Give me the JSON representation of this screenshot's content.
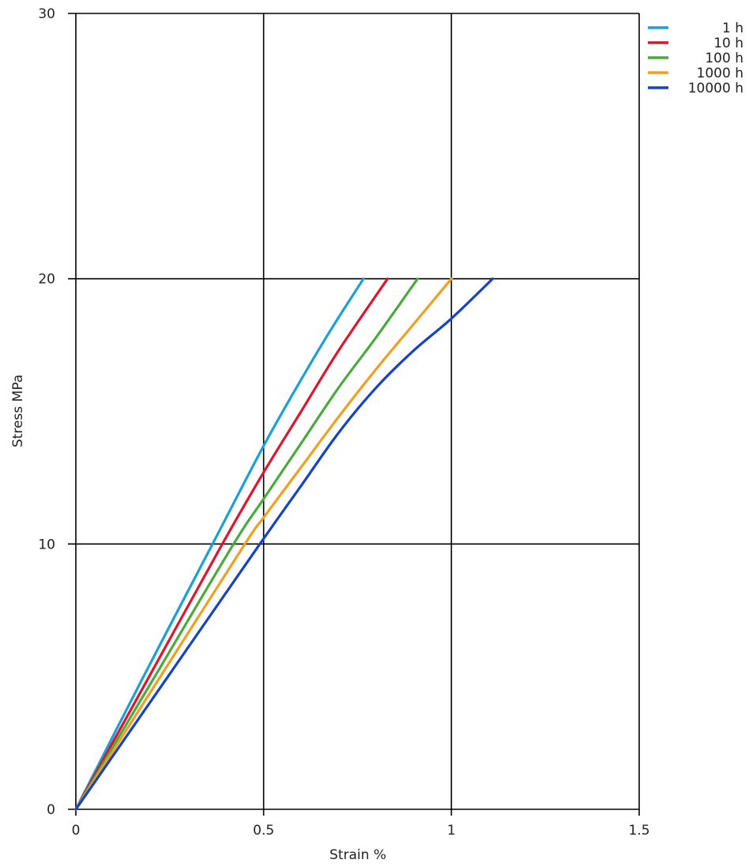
{
  "chart_data": {
    "type": "line",
    "title": "",
    "xlabel": "Strain  %",
    "ylabel": "Stress  MPa",
    "xlim": [
      0,
      1.5
    ],
    "ylim": [
      0,
      30
    ],
    "x_ticks": [
      0,
      0.5,
      1,
      1.5
    ],
    "x_tick_labels": [
      "0",
      "0.5",
      "1",
      "1.5"
    ],
    "y_ticks": [
      0,
      10,
      20,
      30
    ],
    "y_tick_labels": [
      "0",
      "10",
      "20",
      "30"
    ],
    "grid": true,
    "legend_position": "right-top",
    "series": [
      {
        "name": "1 h",
        "color": "#1a9fd8",
        "points": [
          [
            0,
            0
          ],
          [
            0.18,
            5
          ],
          [
            0.364,
            10
          ],
          [
            0.5,
            13.7
          ],
          [
            0.6,
            16.2
          ],
          [
            0.68,
            18.1
          ],
          [
            0.766,
            20
          ]
        ]
      },
      {
        "name": "10 h",
        "color": "#e0142d",
        "points": [
          [
            0,
            0
          ],
          [
            0.195,
            5
          ],
          [
            0.39,
            10
          ],
          [
            0.5,
            12.7
          ],
          [
            0.6,
            15.0
          ],
          [
            0.7,
            17.3
          ],
          [
            0.83,
            20
          ]
        ]
      },
      {
        "name": "100 h",
        "color": "#4aaa3c",
        "points": [
          [
            0,
            0
          ],
          [
            0.21,
            5
          ],
          [
            0.42,
            10
          ],
          [
            0.5,
            11.7
          ],
          [
            0.6,
            13.8
          ],
          [
            0.7,
            15.9
          ],
          [
            0.8,
            17.8
          ],
          [
            0.91,
            20
          ]
        ]
      },
      {
        "name": "1000 h",
        "color": "#f0a020",
        "points": [
          [
            0,
            0
          ],
          [
            0.225,
            5
          ],
          [
            0.45,
            10
          ],
          [
            0.5,
            11.0
          ],
          [
            0.6,
            12.9
          ],
          [
            0.7,
            14.8
          ],
          [
            0.8,
            16.6
          ],
          [
            0.9,
            18.3
          ],
          [
            1.0,
            20
          ]
        ]
      },
      {
        "name": "10000 h",
        "color": "#1442c8",
        "points": [
          [
            0,
            0
          ],
          [
            0.245,
            5
          ],
          [
            0.49,
            10
          ],
          [
            0.6,
            12.2
          ],
          [
            0.7,
            14.2
          ],
          [
            0.8,
            15.9
          ],
          [
            0.9,
            17.3
          ],
          [
            1.0,
            18.5
          ],
          [
            1.11,
            20
          ]
        ]
      }
    ]
  }
}
